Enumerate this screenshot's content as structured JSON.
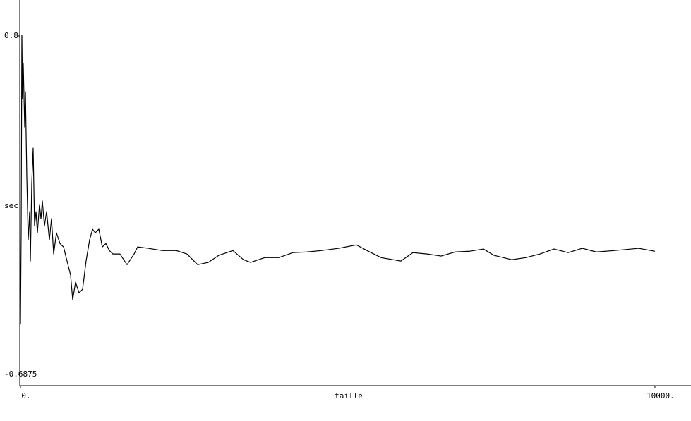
{
  "chart_data": {
    "type": "line",
    "x_label": "taille",
    "y_label": "sec",
    "color": "#000000",
    "grid": false,
    "xlim": [
      -11,
      10568
    ],
    "ylim": [
      -0.737,
      0.958
    ],
    "xticks": [
      {
        "value": 0,
        "label": "0."
      },
      {
        "value": 10000,
        "label": "10000."
      }
    ],
    "yticks": [
      0.8,
      -0.6875
    ],
    "x": [
      0,
      11,
      22,
      33,
      44,
      67,
      78,
      100,
      122,
      145,
      156,
      178,
      200,
      222,
      245,
      267,
      300,
      323,
      345,
      378,
      412,
      456,
      489,
      523,
      567,
      623,
      679,
      734,
      790,
      823,
      868,
      923,
      979,
      1034,
      1090,
      1135,
      1179,
      1235,
      1290,
      1346,
      1401,
      1457,
      1568,
      1680,
      1791,
      1846,
      2013,
      2236,
      2458,
      2625,
      2792,
      2959,
      3125,
      3348,
      3515,
      3626,
      3849,
      4071,
      4294,
      4516,
      4739,
      5017,
      5295,
      5462,
      5684,
      5996,
      6185,
      6407,
      6630,
      6852,
      7075,
      7297,
      7464,
      7742,
      7964,
      8187,
      8409,
      8632,
      8854,
      9077,
      9355,
      9744,
      10000
    ],
    "values": [
      -0.468,
      -0.065,
      0.803,
      0.524,
      0.679,
      0.4,
      0.555,
      0.183,
      -0.096,
      0.028,
      -0.189,
      0.152,
      0.307,
      -0.034,
      0.028,
      -0.065,
      0.059,
      -0.003,
      0.075,
      -0.034,
      0.028,
      -0.096,
      -0.003,
      -0.158,
      -0.065,
      -0.112,
      -0.127,
      -0.189,
      -0.251,
      -0.359,
      -0.282,
      -0.329,
      -0.313,
      -0.189,
      -0.096,
      -0.049,
      -0.065,
      -0.049,
      -0.127,
      -0.112,
      -0.143,
      -0.158,
      -0.158,
      -0.205,
      -0.158,
      -0.127,
      -0.133,
      -0.143,
      -0.143,
      -0.158,
      -0.205,
      -0.195,
      -0.164,
      -0.143,
      -0.183,
      -0.195,
      -0.174,
      -0.174,
      -0.152,
      -0.149,
      -0.143,
      -0.133,
      -0.118,
      -0.143,
      -0.174,
      -0.189,
      -0.152,
      -0.158,
      -0.167,
      -0.149,
      -0.146,
      -0.136,
      -0.164,
      -0.183,
      -0.174,
      -0.158,
      -0.136,
      -0.152,
      -0.133,
      -0.149,
      -0.143,
      -0.133,
      -0.146
    ]
  }
}
